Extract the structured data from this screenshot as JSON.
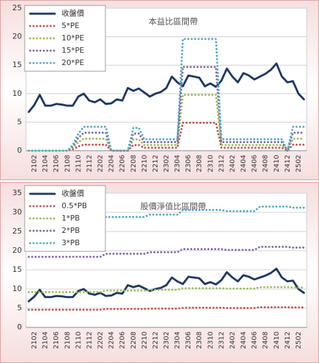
{
  "chart_data": [
    {
      "type": "line",
      "title": "本益比區間帶",
      "categories": [
        null,
        "2102",
        null,
        "2104",
        null,
        "2106",
        null,
        "2108",
        null,
        "2110",
        null,
        "2112",
        null,
        "2202",
        null,
        "2204",
        null,
        "2206",
        null,
        "2208",
        null,
        "2210",
        null,
        "2212",
        null,
        "2302",
        null,
        "2304",
        null,
        "2306",
        null,
        "2308",
        null,
        "2310",
        null,
        "2312",
        null,
        "2402",
        null,
        "2404",
        null,
        "2406",
        null,
        "2408",
        null,
        "2410",
        null,
        "2412",
        null,
        "2502",
        null
      ],
      "ylim": [
        0,
        25
      ],
      "yticks": [
        0,
        5,
        10,
        15,
        20,
        25
      ],
      "grid": true,
      "legend": "top-left",
      "series": [
        {
          "name": "收盤價",
          "color": "#1f3864",
          "style": "solid",
          "values": [
            6.8,
            8.0,
            9.8,
            7.9,
            7.9,
            8.2,
            8.1,
            7.9,
            7.9,
            9.5,
            10.0,
            8.8,
            8.5,
            9.0,
            8.2,
            8.3,
            9.0,
            8.8,
            11.0,
            10.5,
            10.9,
            10.2,
            9.5,
            10.0,
            10.3,
            11.0,
            13.0,
            12.0,
            11.3,
            13.2,
            13.0,
            12.8,
            11.3,
            11.8,
            11.2,
            12.3,
            14.4,
            13.0,
            12.0,
            13.6,
            13.2,
            12.5,
            13.0,
            13.5,
            14.2,
            15.3,
            13.0,
            12.0,
            12.2,
            10.0,
            9.0
          ]
        },
        {
          "name": "5*PE",
          "color": "#c0504d",
          "style": "dotted",
          "values": [
            0,
            0,
            0,
            0,
            0,
            0,
            0,
            0,
            0.25,
            0.75,
            1.05,
            1.05,
            1.05,
            1.05,
            1.05,
            0,
            0,
            0,
            0,
            1,
            1,
            0.5,
            0.5,
            0.5,
            0.5,
            0.5,
            0.5,
            0.5,
            4.9,
            4.9,
            4.9,
            4.9,
            4.9,
            4.9,
            4.9,
            0.5,
            0.5,
            0.5,
            0.5,
            0.5,
            0.5,
            0.5,
            0.5,
            0.5,
            0.5,
            0.5,
            0.5,
            0,
            1.05,
            1.05,
            1.05
          ]
        },
        {
          "name": "10*PE",
          "color": "#9bbb59",
          "style": "dotted",
          "values": [
            0,
            0,
            0,
            0,
            0,
            0,
            0,
            0,
            0.5,
            1.5,
            2.1,
            2.1,
            2.1,
            2.1,
            2.1,
            0,
            0,
            0,
            0,
            2,
            2,
            1,
            1,
            1,
            1,
            1,
            1,
            1,
            9.8,
            9.8,
            9.8,
            9.8,
            9.8,
            9.8,
            9.8,
            1,
            1,
            1,
            1,
            1,
            1,
            1,
            1,
            1,
            1,
            1,
            1,
            0,
            2.1,
            2.1,
            2.1
          ]
        },
        {
          "name": "15*PE",
          "color": "#8064a2",
          "style": "dotted",
          "values": [
            0,
            0,
            0,
            0,
            0,
            0,
            0,
            0,
            0.75,
            2.25,
            3.15,
            3.15,
            3.15,
            3.15,
            3.15,
            0,
            0,
            0,
            0,
            3,
            3,
            1.5,
            1.5,
            1.5,
            1.5,
            1.5,
            1.5,
            1.5,
            14.7,
            14.7,
            14.7,
            14.7,
            14.7,
            14.7,
            14.7,
            1.5,
            1.5,
            1.5,
            1.5,
            1.5,
            1.5,
            1.5,
            1.5,
            1.5,
            1.5,
            1.5,
            1.5,
            0,
            3.15,
            3.15,
            3.15
          ]
        },
        {
          "name": "20*PE",
          "color": "#4bacc6",
          "style": "dotted",
          "values": [
            0,
            0,
            0,
            0,
            0,
            0,
            0,
            0,
            1,
            3,
            4.2,
            4.2,
            4.2,
            4.2,
            4.2,
            0,
            0,
            0,
            0,
            4,
            4,
            2,
            2,
            2,
            2,
            2,
            2,
            2,
            19.6,
            19.6,
            19.6,
            19.6,
            19.6,
            19.6,
            19.6,
            2,
            2,
            2,
            2,
            2,
            2,
            2,
            2,
            2,
            2,
            2,
            2,
            0,
            4.2,
            4.2,
            4.2
          ]
        }
      ]
    },
    {
      "type": "line",
      "title": "股價淨值比區間帶",
      "categories": [
        null,
        "2102",
        null,
        "2104",
        null,
        "2106",
        null,
        "2108",
        null,
        "2110",
        null,
        "2112",
        null,
        "2202",
        null,
        "2204",
        null,
        "2206",
        null,
        "2208",
        null,
        "2210",
        null,
        "2212",
        null,
        "2302",
        null,
        "2304",
        null,
        "2306",
        null,
        "2308",
        null,
        "2310",
        null,
        "2312",
        null,
        "2402",
        null,
        "2404",
        null,
        "2406",
        null,
        "2408",
        null,
        "2410",
        null,
        "2412",
        null,
        "2502",
        null
      ],
      "ylim": [
        0,
        35
      ],
      "yticks": [
        0,
        5,
        10,
        15,
        20,
        25,
        30,
        35
      ],
      "grid": true,
      "legend": "top-left",
      "series": [
        {
          "name": "收盤價",
          "color": "#1f3864",
          "style": "solid",
          "values": [
            6.8,
            8.0,
            9.8,
            7.9,
            7.9,
            8.2,
            8.1,
            7.9,
            7.9,
            9.5,
            10.0,
            8.8,
            8.5,
            9.0,
            8.2,
            8.3,
            9.0,
            8.8,
            11.0,
            10.5,
            10.9,
            10.2,
            9.5,
            10.0,
            10.3,
            11.0,
            13.0,
            12.0,
            11.3,
            13.2,
            13.0,
            12.8,
            11.3,
            11.8,
            11.2,
            12.3,
            14.4,
            13.0,
            12.0,
            13.6,
            13.2,
            12.5,
            13.0,
            13.5,
            14.2,
            15.3,
            13.0,
            12.0,
            12.2,
            10.0,
            9.0
          ]
        },
        {
          "name": "0.5*PB",
          "color": "#c0504d",
          "style": "dotted",
          "values": [
            4.6,
            4.6,
            4.6,
            4.6,
            4.6,
            4.6,
            4.6,
            4.6,
            4.6,
            4.6,
            4.6,
            4.6,
            4.6,
            4.6,
            4.8,
            4.8,
            4.8,
            4.8,
            4.8,
            4.8,
            4.8,
            4.8,
            4.9,
            4.9,
            4.9,
            4.9,
            4.9,
            4.9,
            5.1,
            5.1,
            5.1,
            5.1,
            5.1,
            5.1,
            5.1,
            5.1,
            5.05,
            5.05,
            5.05,
            5.05,
            5.05,
            5.05,
            5.25,
            5.25,
            5.25,
            5.25,
            5.25,
            5.25,
            5.2,
            5.2,
            5.2
          ]
        },
        {
          "name": "1*PB",
          "color": "#9bbb59",
          "style": "dotted",
          "values": [
            9.2,
            9.2,
            9.2,
            9.2,
            9.2,
            9.2,
            9.2,
            9.2,
            9.2,
            9.2,
            9.2,
            9.2,
            9.2,
            9.2,
            9.6,
            9.6,
            9.6,
            9.6,
            9.6,
            9.6,
            9.6,
            9.6,
            9.8,
            9.8,
            9.8,
            9.8,
            9.8,
            9.8,
            10.2,
            10.2,
            10.2,
            10.2,
            10.2,
            10.2,
            10.2,
            10.2,
            10.1,
            10.1,
            10.1,
            10.1,
            10.1,
            10.1,
            10.5,
            10.5,
            10.5,
            10.5,
            10.5,
            10.5,
            10.4,
            10.4,
            10.4
          ]
        },
        {
          "name": "2*PB",
          "color": "#8064a2",
          "style": "dotted",
          "values": [
            18.4,
            18.4,
            18.4,
            18.4,
            18.4,
            18.4,
            18.4,
            18.4,
            18.4,
            18.4,
            18.4,
            18.4,
            18.4,
            18.4,
            19.2,
            19.2,
            19.2,
            19.2,
            19.2,
            19.2,
            19.2,
            19.2,
            19.6,
            19.6,
            19.6,
            19.6,
            19.6,
            19.6,
            20.4,
            20.4,
            20.4,
            20.4,
            20.4,
            20.4,
            20.4,
            20.4,
            20.2,
            20.2,
            20.2,
            20.2,
            20.2,
            20.2,
            21,
            21,
            21,
            21,
            21,
            21,
            20.8,
            20.8,
            20.8
          ]
        },
        {
          "name": "3*PB",
          "color": "#4bacc6",
          "style": "dotted",
          "values": [
            27.6,
            27.6,
            27.6,
            27.6,
            27.6,
            27.6,
            27.6,
            27.6,
            27.6,
            27.6,
            27.6,
            27.6,
            27.6,
            27.6,
            28.8,
            28.8,
            28.8,
            28.8,
            28.8,
            28.8,
            28.8,
            28.8,
            29.4,
            29.4,
            29.4,
            29.4,
            29.4,
            29.4,
            30.6,
            30.6,
            30.6,
            30.6,
            30.6,
            30.6,
            30.6,
            30.6,
            30.3,
            30.3,
            30.3,
            30.3,
            30.3,
            30.3,
            31.5,
            31.5,
            31.5,
            31.5,
            31.5,
            31.5,
            31.2,
            31.2,
            31.2
          ]
        }
      ]
    }
  ]
}
